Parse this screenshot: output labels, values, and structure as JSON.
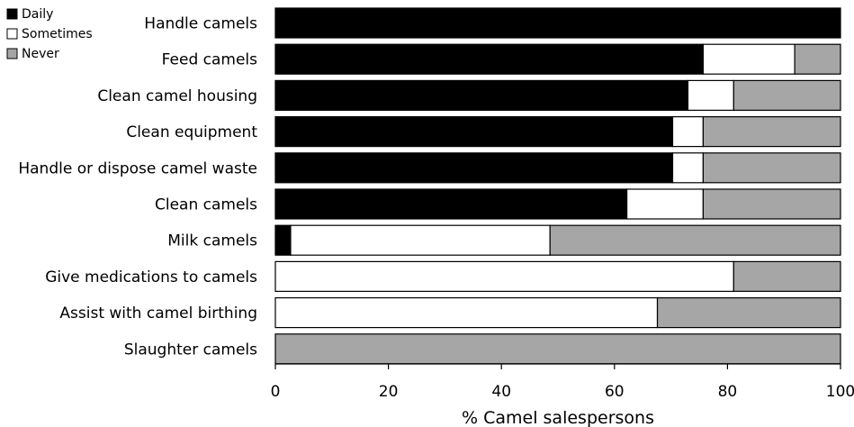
{
  "chart_data": {
    "type": "bar",
    "orientation": "horizontal",
    "stacked": true,
    "xlabel": "% Camel salespersons",
    "xlim": [
      0,
      100
    ],
    "xticks": [
      "0",
      "20",
      "40",
      "60",
      "80",
      "100"
    ],
    "legend": {
      "placement": "top-left",
      "entries": [
        {
          "name": "Daily",
          "color": "#000000"
        },
        {
          "name": "Sometimes",
          "color": "#ffffff"
        },
        {
          "name": "Never",
          "color": "#a6a6a6"
        }
      ]
    },
    "categories": [
      "Handle camels",
      "Feed camels",
      "Clean camel housing",
      "Clean equipment",
      "Handle or dispose camel waste",
      "Clean camels",
      "Milk camels",
      "Give medications to camels",
      "Assist with camel birthing",
      "Slaughter camels"
    ],
    "series": [
      {
        "name": "Daily",
        "color": "#000000",
        "values": [
          100,
          75.7,
          73,
          70.3,
          70.3,
          62.2,
          2.7,
          0,
          0,
          0
        ]
      },
      {
        "name": "Sometimes",
        "color": "#ffffff",
        "values": [
          0,
          16.2,
          8.1,
          5.4,
          5.4,
          13.5,
          45.9,
          81.1,
          67.6,
          0
        ]
      },
      {
        "name": "Never",
        "color": "#a6a6a6",
        "values": [
          0,
          8.1,
          18.9,
          24.3,
          24.3,
          24.3,
          51.4,
          18.9,
          32.4,
          100
        ]
      }
    ]
  }
}
